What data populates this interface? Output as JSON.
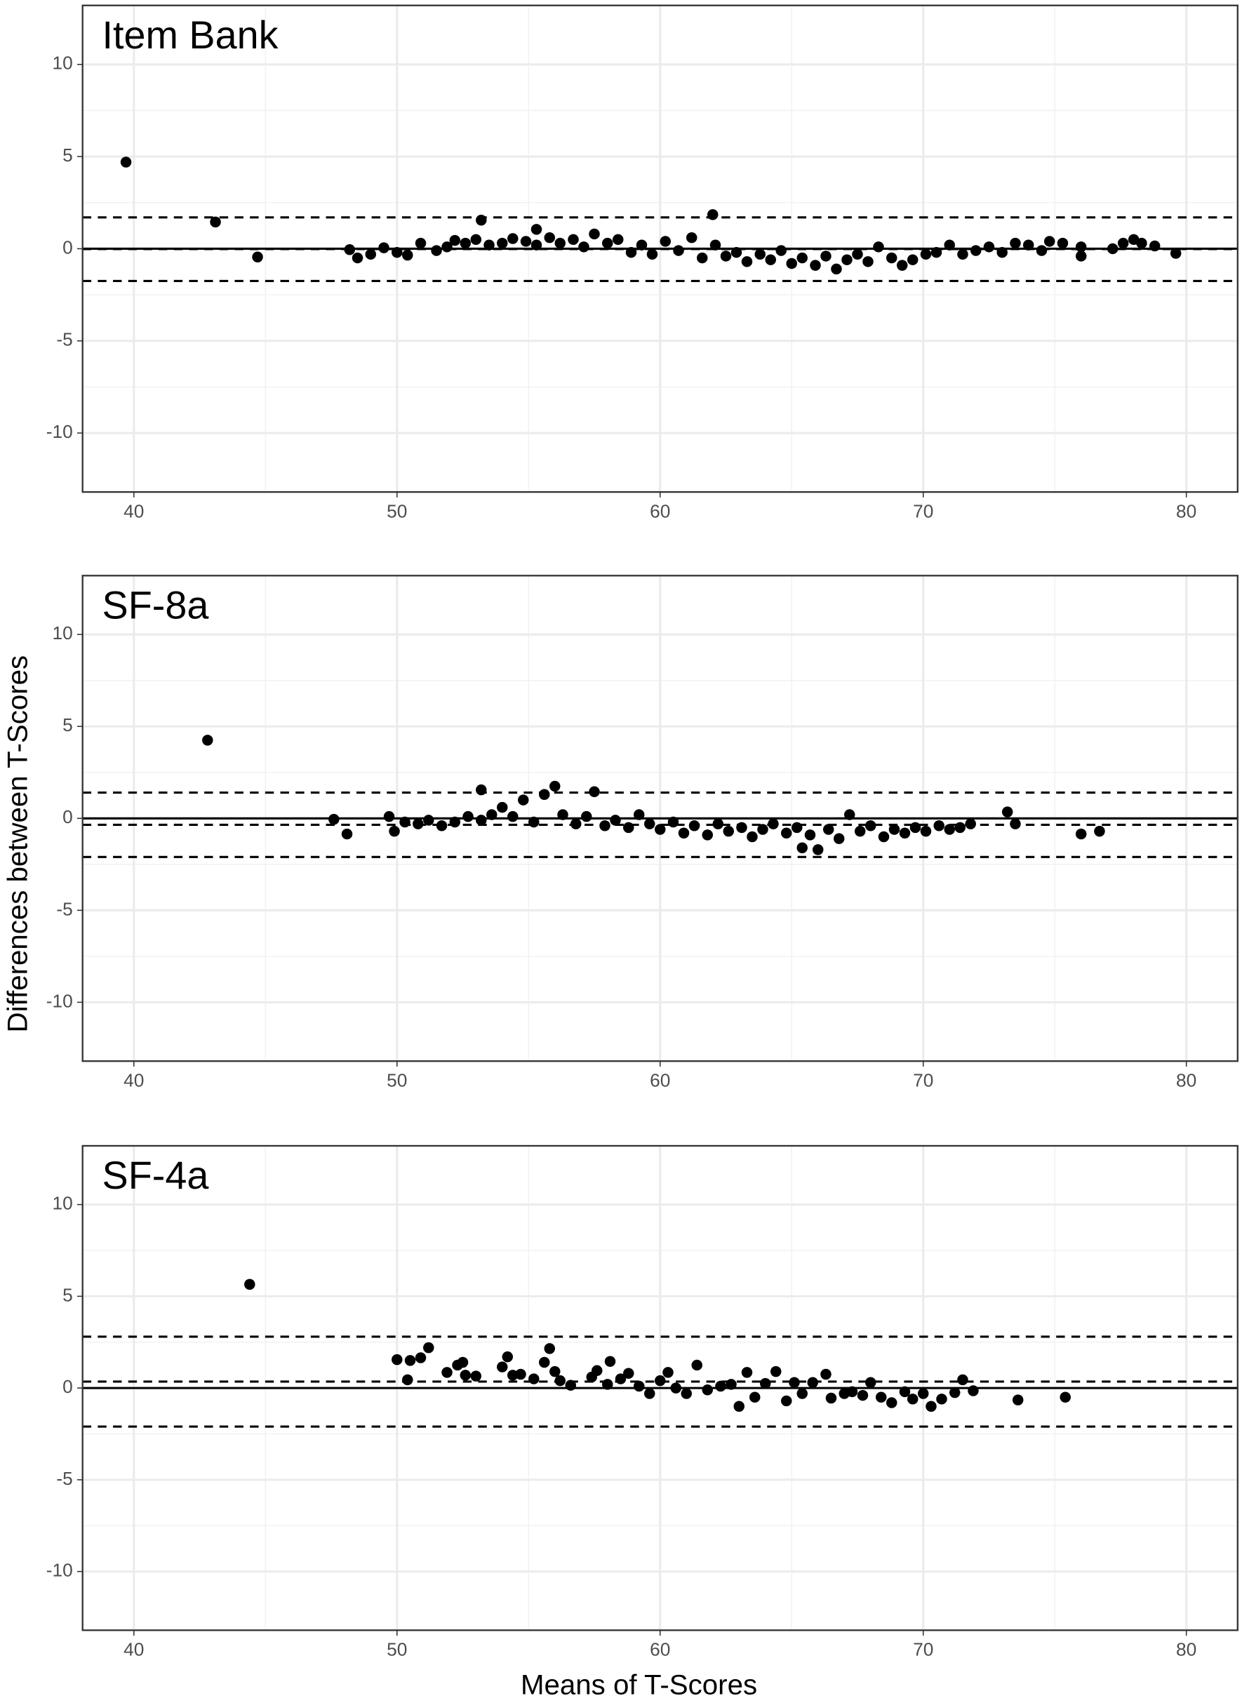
{
  "chart_data": [
    {
      "type": "scatter",
      "title": "Item Bank",
      "xlim": [
        38.05,
        81.95
      ],
      "ylim": [
        -13.2,
        13.2
      ],
      "xticks": [
        40,
        50,
        60,
        70,
        80
      ],
      "yticks": [
        10,
        5,
        0,
        -5,
        -10
      ],
      "minor_xticks": [
        45,
        55,
        65,
        75
      ],
      "minor_yticks": [
        7.5,
        2.5,
        -2.5,
        -7.5
      ],
      "grid": true,
      "color": "#000000",
      "zero_line": 0,
      "dashed_lines": [
        1.7,
        -0.02,
        -1.75
      ],
      "x": [
        39.7,
        43.1,
        44.7,
        53.2,
        55.3,
        62.0,
        48.2,
        48.5,
        49.0,
        49.5,
        50.0,
        50.4,
        50.9,
        51.5,
        51.9,
        52.2,
        52.6,
        53.0,
        53.5,
        54.0,
        54.4,
        54.9,
        55.3,
        55.8,
        56.2,
        56.7,
        57.1,
        57.5,
        58.0,
        58.4,
        58.9,
        59.3,
        59.7,
        60.2,
        60.7,
        61.2,
        61.6,
        62.1,
        62.5,
        62.9,
        63.3,
        63.8,
        64.2,
        64.6,
        65.0,
        65.4,
        65.9,
        66.3,
        66.7,
        67.1,
        67.5,
        67.9,
        68.3,
        68.8,
        69.2,
        69.6,
        70.1,
        70.5,
        71.0,
        71.5,
        72.0,
        72.5,
        73.0,
        73.5,
        74.0,
        74.5,
        74.8,
        75.3,
        76.0,
        76.0,
        77.2,
        77.6,
        78.0,
        78.3,
        78.8,
        79.6
      ],
      "values": [
        4.7,
        1.45,
        -0.45,
        1.55,
        1.05,
        1.85,
        -0.05,
        -0.5,
        -0.3,
        0.05,
        -0.2,
        -0.35,
        0.3,
        -0.1,
        0.1,
        0.45,
        0.3,
        0.5,
        0.2,
        0.3,
        0.55,
        0.4,
        0.2,
        0.6,
        0.3,
        0.5,
        0.1,
        0.8,
        0.3,
        0.5,
        -0.2,
        0.2,
        -0.3,
        0.4,
        -0.1,
        0.6,
        -0.5,
        0.2,
        -0.4,
        -0.2,
        -0.7,
        -0.3,
        -0.6,
        -0.1,
        -0.8,
        -0.5,
        -0.9,
        -0.4,
        -1.1,
        -0.6,
        -0.3,
        -0.7,
        0.1,
        -0.5,
        -0.9,
        -0.6,
        -0.3,
        -0.2,
        0.2,
        -0.3,
        -0.1,
        0.1,
        -0.2,
        0.3,
        0.2,
        -0.1,
        0.4,
        0.3,
        0.1,
        -0.4,
        0.0,
        0.3,
        0.5,
        0.3,
        0.15,
        -0.25
      ]
    },
    {
      "type": "scatter",
      "title": "SF-8a",
      "y_label": "Differences between T-Scores",
      "xlim": [
        38.05,
        81.95
      ],
      "ylim": [
        -13.2,
        13.2
      ],
      "xticks": [
        40,
        50,
        60,
        70,
        80
      ],
      "yticks": [
        10,
        5,
        0,
        -5,
        -10
      ],
      "minor_xticks": [
        45,
        55,
        65,
        75
      ],
      "minor_yticks": [
        7.5,
        2.5,
        -2.5,
        -7.5
      ],
      "grid": true,
      "color": "#000000",
      "zero_line": 0,
      "dashed_lines": [
        1.4,
        -0.35,
        -2.1
      ],
      "x": [
        42.8,
        47.6,
        48.1,
        49.7,
        49.9,
        50.3,
        50.8,
        51.2,
        51.7,
        52.2,
        52.7,
        53.2,
        53.2,
        53.6,
        54.0,
        54.4,
        54.8,
        55.2,
        55.6,
        56.0,
        56.3,
        56.8,
        57.2,
        57.5,
        57.9,
        58.3,
        58.8,
        59.2,
        59.6,
        60.0,
        60.5,
        60.9,
        61.3,
        61.8,
        62.2,
        62.6,
        63.1,
        63.5,
        63.9,
        64.3,
        64.8,
        65.2,
        65.4,
        65.7,
        66.0,
        66.4,
        66.8,
        67.2,
        67.6,
        68.0,
        68.5,
        68.9,
        69.3,
        69.7,
        70.1,
        70.6,
        71.0,
        71.4,
        71.8,
        73.2,
        73.5,
        76.0,
        76.7
      ],
      "values": [
        4.25,
        -0.05,
        -0.85,
        0.1,
        -0.7,
        -0.2,
        -0.3,
        -0.1,
        -0.4,
        -0.2,
        0.1,
        1.55,
        -0.1,
        0.2,
        0.6,
        0.1,
        1.0,
        -0.2,
        1.3,
        1.75,
        0.2,
        -0.3,
        0.1,
        1.45,
        -0.4,
        -0.1,
        -0.5,
        0.2,
        -0.3,
        -0.6,
        -0.2,
        -0.8,
        -0.4,
        -0.9,
        -0.3,
        -0.7,
        -0.5,
        -1.0,
        -0.6,
        -0.3,
        -0.8,
        -0.5,
        -1.6,
        -0.9,
        -1.7,
        -0.6,
        -1.1,
        0.2,
        -0.7,
        -0.4,
        -1.0,
        -0.6,
        -0.8,
        -0.5,
        -0.7,
        -0.4,
        -0.6,
        -0.5,
        -0.3,
        0.35,
        -0.3,
        -0.85,
        -0.7
      ]
    },
    {
      "type": "scatter",
      "title": "SF-4a",
      "x_label": "Means of T-Scores",
      "xlim": [
        38.05,
        81.95
      ],
      "ylim": [
        -13.2,
        13.2
      ],
      "xticks": [
        40,
        50,
        60,
        70,
        80
      ],
      "yticks": [
        10,
        5,
        0,
        -5,
        -10
      ],
      "minor_xticks": [
        45,
        55,
        65,
        75
      ],
      "minor_yticks": [
        7.5,
        2.5,
        -2.5,
        -7.5
      ],
      "grid": true,
      "color": "#000000",
      "zero_line": 0,
      "dashed_lines": [
        2.8,
        0.35,
        -2.1
      ],
      "x": [
        44.4,
        50.0,
        50.4,
        50.5,
        50.9,
        51.2,
        51.9,
        52.3,
        52.5,
        52.6,
        53.0,
        54.0,
        54.2,
        54.4,
        54.7,
        55.2,
        55.6,
        55.8,
        56.0,
        56.2,
        56.6,
        57.4,
        57.6,
        58.0,
        58.1,
        58.5,
        58.8,
        59.2,
        59.6,
        60.0,
        60.3,
        60.6,
        61.0,
        61.4,
        61.8,
        62.3,
        62.7,
        63.0,
        63.3,
        63.6,
        64.0,
        64.4,
        64.8,
        65.1,
        65.4,
        65.8,
        66.3,
        66.5,
        67.0,
        67.3,
        67.7,
        68.0,
        68.4,
        68.8,
        69.3,
        69.6,
        70.0,
        70.3,
        70.7,
        71.2,
        71.5,
        71.9,
        73.6,
        75.4
      ],
      "values": [
        5.65,
        1.55,
        0.45,
        1.5,
        1.65,
        2.2,
        0.85,
        1.25,
        1.4,
        0.7,
        0.65,
        1.15,
        1.7,
        0.7,
        0.75,
        0.5,
        1.4,
        2.15,
        0.9,
        0.4,
        0.15,
        0.6,
        0.95,
        0.2,
        1.45,
        0.5,
        0.8,
        0.1,
        -0.3,
        0.4,
        0.85,
        0.0,
        -0.3,
        1.25,
        -0.1,
        0.1,
        0.2,
        -1.0,
        0.85,
        -0.5,
        0.25,
        0.9,
        -0.7,
        0.3,
        -0.3,
        0.3,
        0.75,
        -0.55,
        -0.3,
        -0.2,
        -0.4,
        0.3,
        -0.5,
        -0.8,
        -0.2,
        -0.6,
        -0.3,
        -1.0,
        -0.6,
        -0.25,
        0.45,
        -0.15,
        -0.65,
        -0.5
      ]
    }
  ]
}
